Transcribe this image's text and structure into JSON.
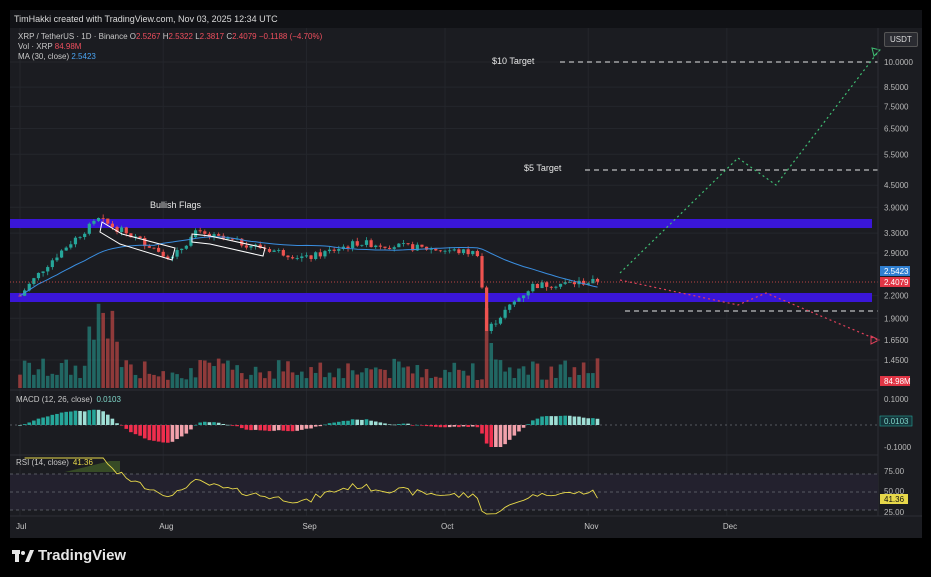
{
  "header": {
    "created_by": "TimHakki created with TradingView.com, Nov 03, 2025 12:34 UTC"
  },
  "legend": {
    "pair": "XRP / TetherUS · 1D · Binance",
    "o_label": "O",
    "o_value": "2.5267",
    "h_label": "H",
    "h_value": "2.5322",
    "l_label": "L",
    "l_value": "2.3817",
    "c_label": "C",
    "c_value": "2.4079",
    "change": "−0.1188 (−4.70%)",
    "vol_label": "Vol · XRP",
    "vol_value": "84.98M",
    "ma_label": "MA (30, close)",
    "ma_value": "2.5423"
  },
  "currency_button": "USDT",
  "footer": {
    "brand": "TradingView"
  },
  "colors": {
    "up": "#26a69a",
    "down": "#ef5350",
    "band": "#3a16d8",
    "ma": "#3a8ee0",
    "rsi": "#e7d84a",
    "projection_up": "#3fbf73",
    "projection_down": "#e2405a"
  },
  "chart_data": [
    {
      "type": "candlestick",
      "name": "price",
      "scale": "log",
      "ylim": [
        1.3,
        11.5
      ],
      "x_ticks": [
        "Jul",
        "Aug",
        "Sep",
        "Oct",
        "Nov",
        "Dec"
      ],
      "y_ticks": [
        "10.0000",
        "8.5000",
        "7.5000",
        "6.5000",
        "5.5000",
        "4.5000",
        "3.9000",
        "3.3000",
        "2.9000",
        "2.5423",
        "2.4079",
        "2.2000",
        "1.9000",
        "1.6500",
        "1.4500"
      ],
      "current_price": "2.4079",
      "ma_value": "2.5423",
      "key_points": [
        {
          "date": "Jul 1",
          "price": 2.2
        },
        {
          "date": "Jul 18",
          "price": 3.6
        },
        {
          "date": "Aug 3",
          "price": 2.8
        },
        {
          "date": "Aug 8",
          "price": 3.3
        },
        {
          "date": "Sep 1",
          "price": 2.8
        },
        {
          "date": "Sep 12",
          "price": 3.1
        },
        {
          "date": "Oct 8",
          "price": 2.9
        },
        {
          "date": "Oct 10",
          "price": 1.75
        },
        {
          "date": "Oct 20",
          "price": 2.35
        },
        {
          "date": "Nov 3",
          "price": 2.41
        }
      ],
      "support_zone": [
        2.15,
        2.25
      ],
      "resistance_zone": [
        3.4,
        3.55
      ],
      "annotations": [
        {
          "text": "Bullish Flags"
        },
        {
          "text": "$10 Target",
          "price": 10.0
        },
        {
          "text": "$5 Target",
          "price": 5.0
        }
      ]
    },
    {
      "type": "bar",
      "name": "volume",
      "label": "Vol · XRP",
      "last": "84.98M"
    },
    {
      "type": "histogram",
      "name": "MACD",
      "label": "MACD (12, 26, close)",
      "value": "0.0103",
      "y_ticks": [
        "0.1000",
        "0.0103",
        "-0.1000"
      ]
    },
    {
      "type": "line",
      "name": "RSI",
      "label": "RSI (14, close)",
      "value": "41.36",
      "y_ticks": [
        "75.00",
        "50.00",
        "41.36",
        "25.00"
      ]
    }
  ]
}
